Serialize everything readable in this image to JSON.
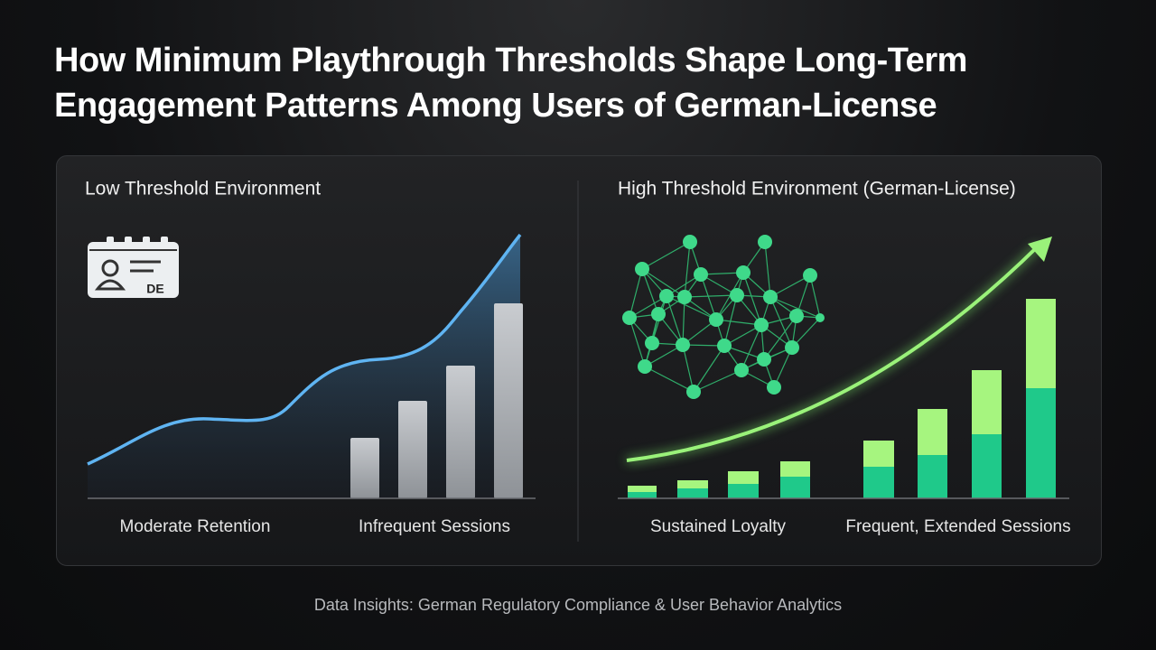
{
  "header": {
    "title": "How Minimum Playthrough Thresholds Shape Long-Term Engagement Patterns Among Users of German-License"
  },
  "panels": [
    {
      "heading": "Low Threshold Environment",
      "icon_label": "DE",
      "labels": [
        "Moderate Retention",
        "Infrequent Sessions"
      ]
    },
    {
      "heading": "High Threshold Environment (German-License)",
      "labels": [
        "Sustained Loyalty",
        "Frequent, Extended Sessions"
      ]
    }
  ],
  "footer": "Data Insights: German Regulatory Compliance & User Behavior Analytics"
}
